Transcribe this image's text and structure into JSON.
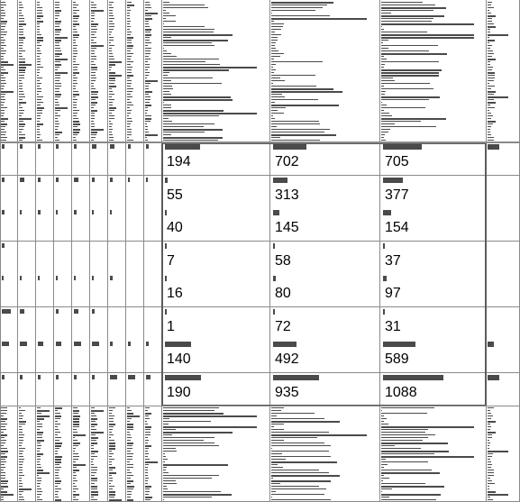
{
  "table_lens": {
    "focus_rows": [
      {
        "values": [
          "194",
          "702",
          "705"
        ],
        "fractions": [
          0.34,
          0.32,
          0.38
        ]
      },
      {
        "values": [
          "55",
          "313",
          "377"
        ],
        "fractions": [
          0.03,
          0.14,
          0.2
        ]
      },
      {
        "values": [
          "40",
          "145",
          "154"
        ],
        "fractions": [
          0.02,
          0.06,
          0.08
        ]
      },
      {
        "values": [
          "7",
          "58",
          "37"
        ],
        "fractions": [
          0.01,
          0.02,
          0.01
        ]
      },
      {
        "values": [
          "16",
          "80",
          "97"
        ],
        "fractions": [
          0.01,
          0.03,
          0.04
        ]
      },
      {
        "values": [
          "1",
          "72",
          "31"
        ],
        "fractions": [
          0.0,
          0.02,
          0.01
        ]
      },
      {
        "values": [
          "140",
          "492",
          "589"
        ],
        "fractions": [
          0.25,
          0.22,
          0.32
        ]
      },
      {
        "values": [
          "190",
          "935",
          "1088"
        ],
        "fractions": [
          0.35,
          0.44,
          0.6
        ]
      }
    ],
    "narrow_columns_in_focus_rows": [
      [
        0.2,
        0.2,
        0.2,
        0.2,
        0.2,
        0.3,
        0.3,
        0.2,
        0.2
      ],
      [
        0.2,
        0.3,
        0.2,
        0.2,
        0.3,
        0.2,
        0.2,
        0.1,
        0.1
      ],
      [
        0.2,
        0.1,
        0.2,
        0.1,
        0.2,
        0.1,
        0.1,
        0.0,
        0.0
      ],
      [
        0.2,
        0.0,
        0.0,
        0.0,
        0.0,
        0.0,
        0.0,
        0.0,
        0.0
      ],
      [
        0.1,
        0.1,
        0.1,
        0.1,
        0.1,
        0.1,
        0.2,
        0.0,
        0.0
      ],
      [
        0.6,
        0.3,
        0.0,
        0.2,
        0.3,
        0.2,
        0.0,
        0.0,
        0.0
      ],
      [
        0.5,
        0.5,
        0.4,
        0.4,
        0.5,
        0.5,
        0.2,
        0.2,
        0.2
      ],
      [
        0.2,
        0.2,
        0.2,
        0.2,
        0.2,
        0.2,
        0.5,
        0.5,
        0.3
      ]
    ],
    "edge_column_focus_fractions": [
      0.4,
      0.0,
      0.0,
      0.0,
      0.0,
      0.0,
      0.2,
      0.4
    ]
  }
}
